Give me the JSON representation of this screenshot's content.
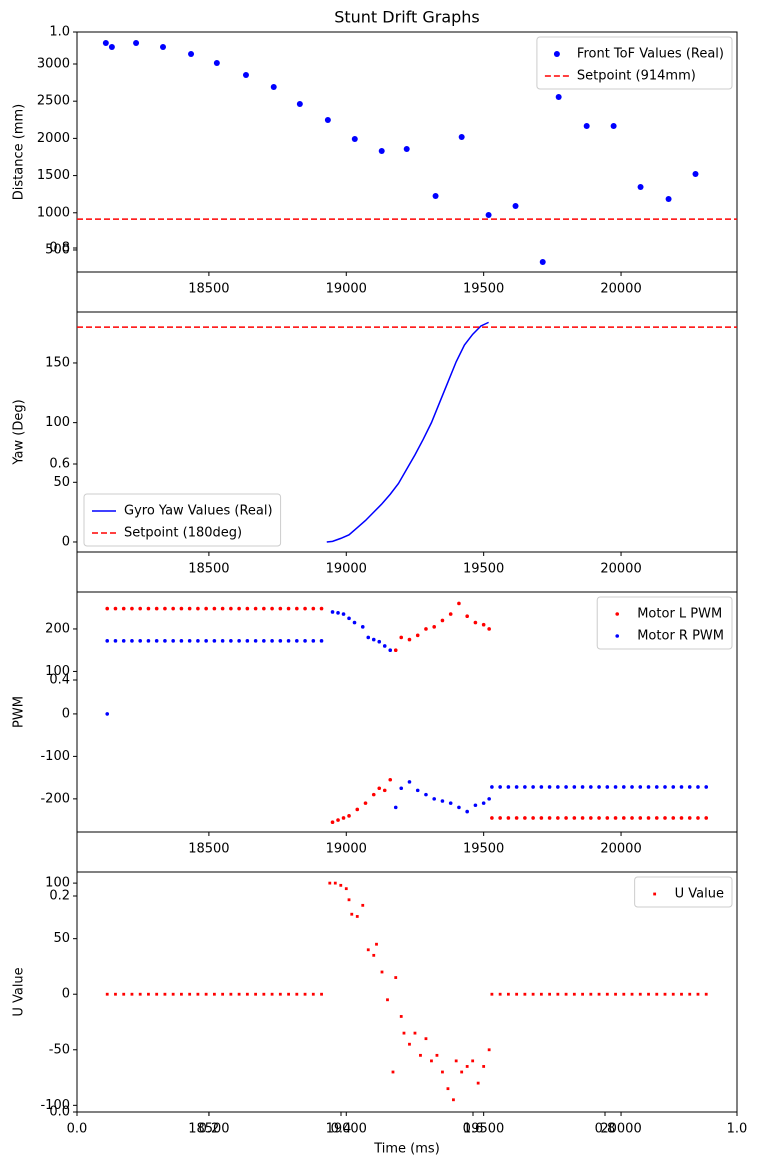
{
  "chart_data": [
    {
      "type": "axes",
      "title": "Stunt Drift Graphs",
      "xlabel": "Time (ms)",
      "xlim": [
        0,
        1
      ],
      "ylim": [
        0,
        1
      ],
      "xticks": [
        {
          "value": 0,
          "label": "0.0"
        },
        0.2,
        0.4,
        0.6,
        0.8,
        {
          "value": 1,
          "label": "1.0"
        }
      ],
      "yticks": [
        {
          "value": 0,
          "label": "0.0"
        },
        0.2,
        0.4,
        0.6,
        0.8,
        {
          "value": 1,
          "label": "1.0"
        }
      ],
      "grid": false
    },
    {
      "type": "scatter",
      "ylabel": "Distance (mm)",
      "xlim": [
        18020,
        20422
      ],
      "ylim": [
        204,
        3430
      ],
      "xticks": [
        18500,
        19000,
        19500,
        20000
      ],
      "yticks": [
        500,
        1000,
        1500,
        2000,
        2500,
        3000
      ],
      "grid": false,
      "legend": "upper right",
      "series": [
        {
          "name": "Front ToF Values (Real)",
          "color": "#0000ff",
          "type": "scatter",
          "x": [
            18125,
            18147,
            18235,
            18333,
            18435,
            18529,
            18635,
            18736,
            18831,
            18933,
            19031,
            19129,
            19220,
            19325,
            19420,
            19518,
            19616,
            19715,
            19773,
            19875,
            19973,
            20071,
            20173,
            20271
          ],
          "values": [
            3282,
            3228,
            3282,
            3228,
            3134,
            3013,
            2852,
            2691,
            2462,
            2247,
            1992,
            1831,
            1858,
            1226,
            2019,
            970,
            1091,
            339,
            2556,
            2167,
            2167,
            1347,
            1185,
            1522
          ]
        },
        {
          "name": "Setpoint (914mm)",
          "color": "#ff0000",
          "type": "hline",
          "values": [
            914
          ]
        }
      ]
    },
    {
      "type": "line",
      "ylabel": "Yaw (Deg)",
      "xlim": [
        18020,
        20422
      ],
      "ylim": [
        -8.4,
        192.7
      ],
      "xticks": [
        18500,
        19000,
        19500,
        20000
      ],
      "yticks": [
        0,
        50,
        100,
        150
      ],
      "grid": false,
      "legend": "lower left",
      "series": [
        {
          "name": "Gyro Yaw Values (Real)",
          "color": "#0000ff",
          "type": "line",
          "x": [
            18929,
            18950,
            18980,
            19010,
            19040,
            19070,
            19100,
            19130,
            19160,
            19190,
            19220,
            19250,
            19280,
            19310,
            19340,
            19370,
            19400,
            19430,
            19460,
            19490,
            19518
          ],
          "values": [
            0,
            0.5,
            3,
            6,
            12,
            18,
            25,
            32,
            40,
            49,
            61,
            73,
            86,
            100,
            117,
            134,
            151,
            165,
            174,
            181,
            184
          ]
        },
        {
          "name": "Setpoint (180deg)",
          "color": "#ff0000",
          "type": "hline",
          "values": [
            180
          ]
        }
      ]
    },
    {
      "type": "scatter",
      "ylabel": "PWM",
      "xlim": [
        18020,
        20422
      ],
      "ylim": [
        -278,
        287
      ],
      "xticks": [
        18500,
        19000,
        19500,
        20000
      ],
      "yticks": [
        -200,
        -100,
        0,
        100,
        200
      ],
      "grid": false,
      "legend": "upper right",
      "series": [
        {
          "name": "Motor L PWM",
          "color": "#ff0000",
          "type": "scatter",
          "x": [
            18130,
            18160,
            18190,
            18220,
            18250,
            18280,
            18310,
            18340,
            18370,
            18400,
            18430,
            18460,
            18490,
            18520,
            18550,
            18580,
            18610,
            18640,
            18670,
            18700,
            18730,
            18760,
            18790,
            18820,
            18850,
            18880,
            18910,
            18950,
            18970,
            18990,
            19010,
            19040,
            19070,
            19100,
            19120,
            19140,
            19160,
            19180,
            19200,
            19230,
            19260,
            19290,
            19320,
            19350,
            19380,
            19410,
            19440,
            19470,
            19500,
            19520,
            19530,
            19560,
            19590,
            19620,
            19650,
            19680,
            19710,
            19740,
            19770,
            19800,
            19830,
            19860,
            19890,
            19920,
            19950,
            19980,
            20010,
            20040,
            20070,
            20100,
            20130,
            20160,
            20190,
            20220,
            20250,
            20280,
            20310
          ],
          "values": [
            248,
            248,
            248,
            248,
            248,
            248,
            248,
            248,
            248,
            248,
            248,
            248,
            248,
            248,
            248,
            248,
            248,
            248,
            248,
            248,
            248,
            248,
            248,
            248,
            248,
            248,
            248,
            -255,
            -250,
            -245,
            -240,
            -225,
            -210,
            -190,
            -175,
            -180,
            -155,
            150,
            180,
            175,
            185,
            200,
            205,
            220,
            235,
            260,
            230,
            215,
            210,
            200,
            -245,
            -245,
            -245,
            -245,
            -245,
            -245,
            -245,
            -245,
            -245,
            -245,
            -245,
            -245,
            -245,
            -245,
            -245,
            -245,
            -245,
            -245,
            -245,
            -245,
            -245,
            -245,
            -245,
            -245,
            -245,
            -245,
            -245
          ]
        },
        {
          "name": "Motor R PWM",
          "color": "#0000ff",
          "type": "scatter",
          "x": [
            18130,
            18130,
            18160,
            18190,
            18220,
            18250,
            18280,
            18310,
            18340,
            18370,
            18400,
            18430,
            18460,
            18490,
            18520,
            18550,
            18580,
            18610,
            18640,
            18670,
            18700,
            18730,
            18760,
            18790,
            18820,
            18850,
            18880,
            18910,
            18950,
            18970,
            18990,
            19010,
            19030,
            19060,
            19080,
            19100,
            19120,
            19140,
            19160,
            19180,
            19200,
            19230,
            19260,
            19290,
            19320,
            19350,
            19380,
            19410,
            19440,
            19470,
            19500,
            19520,
            19530,
            19560,
            19590,
            19620,
            19650,
            19680,
            19710,
            19740,
            19770,
            19800,
            19830,
            19860,
            19890,
            19920,
            19950,
            19980,
            20010,
            20040,
            20070,
            20100,
            20130,
            20160,
            20190,
            20220,
            20250,
            20280,
            20310
          ],
          "values": [
            0,
            172,
            172,
            172,
            172,
            172,
            172,
            172,
            172,
            172,
            172,
            172,
            172,
            172,
            172,
            172,
            172,
            172,
            172,
            172,
            172,
            172,
            172,
            172,
            172,
            172,
            172,
            172,
            240,
            238,
            235,
            225,
            215,
            205,
            180,
            175,
            170,
            160,
            150,
            -220,
            -175,
            -160,
            -180,
            -190,
            -200,
            -205,
            -210,
            -220,
            -230,
            -215,
            -210,
            -200,
            -172,
            -172,
            -172,
            -172,
            -172,
            -172,
            -172,
            -172,
            -172,
            -172,
            -172,
            -172,
            -172,
            -172,
            -172,
            -172,
            -172,
            -172,
            -172,
            -172,
            -172,
            -172,
            -172,
            -172,
            -172,
            -172,
            -172
          ]
        }
      ]
    },
    {
      "type": "scatter",
      "ylabel": "U Value",
      "xlim": [
        18020,
        20422
      ],
      "ylim": [
        -106,
        110
      ],
      "xticks": [
        18500,
        19000,
        19500,
        20000
      ],
      "yticks": [
        -100,
        -50,
        0,
        50,
        100
      ],
      "grid": false,
      "legend": "upper right",
      "series": [
        {
          "name": "U Value",
          "color": "#ff0000",
          "type": "scatter",
          "marker": "square",
          "x": [
            18130,
            18160,
            18190,
            18220,
            18250,
            18280,
            18310,
            18340,
            18370,
            18400,
            18430,
            18460,
            18490,
            18520,
            18550,
            18580,
            18610,
            18640,
            18670,
            18700,
            18730,
            18760,
            18790,
            18820,
            18850,
            18880,
            18910,
            18940,
            18960,
            18980,
            19000,
            19010,
            19020,
            19040,
            19060,
            19080,
            19100,
            19110,
            19130,
            19150,
            19170,
            19180,
            19200,
            19210,
            19230,
            19250,
            19270,
            19290,
            19310,
            19330,
            19350,
            19370,
            19390,
            19400,
            19420,
            19440,
            19460,
            19480,
            19500,
            19520,
            19530,
            19560,
            19590,
            19620,
            19650,
            19680,
            19710,
            19740,
            19770,
            19800,
            19830,
            19860,
            19890,
            19920,
            19950,
            19980,
            20010,
            20040,
            20070,
            20100,
            20130,
            20160,
            20190,
            20220,
            20250,
            20280,
            20310
          ],
          "values": [
            0,
            0,
            0,
            0,
            0,
            0,
            0,
            0,
            0,
            0,
            0,
            0,
            0,
            0,
            0,
            0,
            0,
            0,
            0,
            0,
            0,
            0,
            0,
            0,
            0,
            0,
            0,
            100,
            100,
            98,
            95,
            85,
            72,
            70,
            80,
            40,
            35,
            45,
            20,
            -5,
            -70,
            15,
            -20,
            -35,
            -45,
            -35,
            -55,
            -40,
            -60,
            -55,
            -70,
            -85,
            -95,
            -60,
            -70,
            -65,
            -60,
            -80,
            -65,
            -50,
            0,
            0,
            0,
            0,
            0,
            0,
            0,
            0,
            0,
            0,
            0,
            0,
            0,
            0,
            0,
            0,
            0,
            0,
            0,
            0,
            0,
            0,
            0,
            0,
            0,
            0,
            0
          ]
        }
      ]
    }
  ]
}
